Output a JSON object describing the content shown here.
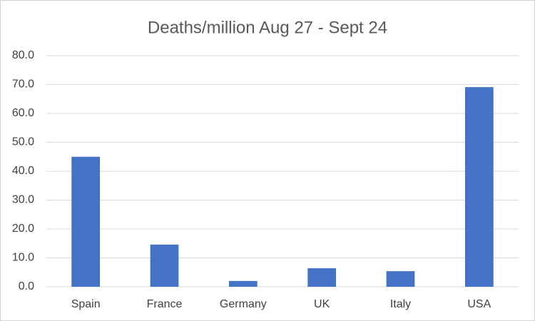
{
  "chart_data": {
    "type": "bar",
    "title": "Deaths/million Aug 27 - Sept 24",
    "categories": [
      "Spain",
      "France",
      "Germany",
      "UK",
      "Italy",
      "USA"
    ],
    "values": [
      45.0,
      14.6,
      2.0,
      6.4,
      5.4,
      69.1
    ],
    "color": "#4472c4",
    "ylim": [
      0,
      80
    ],
    "yticks": [
      {
        "value": 0,
        "label": "0.0"
      },
      {
        "value": 10,
        "label": "10.0"
      },
      {
        "value": 20,
        "label": "20.0"
      },
      {
        "value": 30,
        "label": "30.0"
      },
      {
        "value": 40,
        "label": "40.0"
      },
      {
        "value": 50,
        "label": "50.0"
      },
      {
        "value": 60,
        "label": "60.0"
      },
      {
        "value": 70,
        "label": "70.0"
      },
      {
        "value": 80,
        "label": "80.0"
      }
    ],
    "grid": true
  }
}
